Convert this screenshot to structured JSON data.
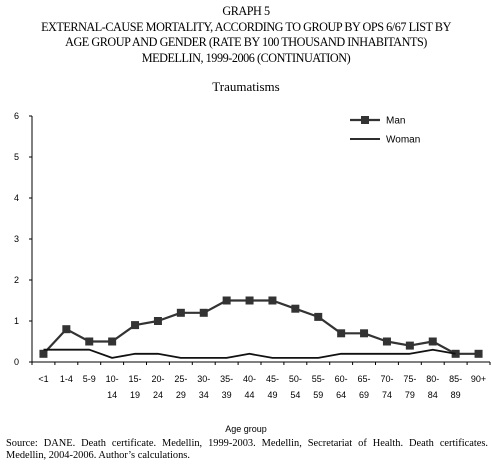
{
  "header": {
    "graph_number": "GRAPH 5",
    "title_line_1": "EXTERNAL-CAUSE MORTALITY, ACCORDING TO GROUP BY OPS 6/67 LIST BY",
    "title_line_2": "AGE GROUP AND GENDER (RATE BY 100 THOUSAND INHABITANTS)",
    "title_line_3": "MEDELLIN, 1999-2006 (CONTINUATION)"
  },
  "chart_data": {
    "type": "line",
    "title": "Traumatisms",
    "xlabel": "Age group",
    "ylabel": "",
    "ylim": [
      0,
      6
    ],
    "yticks": [
      "0",
      "1",
      "2",
      "3",
      "4",
      "5",
      "6"
    ],
    "grid": false,
    "legend_position": "top-right",
    "categories": [
      [
        "<1"
      ],
      [
        "1-4"
      ],
      [
        "5-9"
      ],
      [
        "10-",
        "14"
      ],
      [
        "15-",
        "19"
      ],
      [
        "20-",
        "24"
      ],
      [
        "25-",
        "29"
      ],
      [
        "30-",
        "34"
      ],
      [
        "35-",
        "39"
      ],
      [
        "40-",
        "44"
      ],
      [
        "45-",
        "49"
      ],
      [
        "50-",
        "54"
      ],
      [
        "55-",
        "59"
      ],
      [
        "60-",
        "64"
      ],
      [
        "65-",
        "69"
      ],
      [
        "70-",
        "74"
      ],
      [
        "75-",
        "79"
      ],
      [
        "80-",
        "84"
      ],
      [
        "85-",
        "89"
      ],
      [
        "90+"
      ]
    ],
    "series": [
      {
        "name": "Man",
        "marker": "square",
        "color": "#333333",
        "values": [
          0.2,
          0.8,
          0.5,
          0.5,
          0.9,
          1.0,
          1.2,
          1.2,
          1.5,
          1.5,
          1.5,
          1.3,
          1.1,
          0.7,
          0.7,
          0.5,
          0.4,
          0.5,
          0.2,
          0.2
        ]
      },
      {
        "name": "Woman",
        "marker": "none",
        "color": "#111111",
        "values": [
          0.3,
          0.3,
          0.3,
          0.1,
          0.2,
          0.2,
          0.1,
          0.1,
          0.1,
          0.2,
          0.1,
          0.1,
          0.1,
          0.2,
          0.2,
          0.2,
          0.2,
          0.3,
          0.2,
          null
        ]
      }
    ]
  },
  "footer": {
    "source": "Source: DANE. Death certificate. Medellin, 1999-2003. Medellin, Secretariat of Health. Death certificates. Medellin, 2004-2006. Author’s calculations."
  }
}
